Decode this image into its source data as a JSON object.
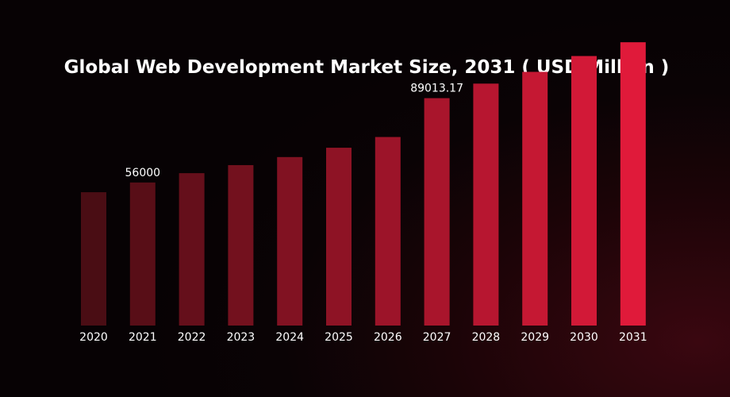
{
  "chart_data": {
    "type": "bar",
    "title": "Global Web Development Market Size, 2031 ( USD Million )",
    "xlabel": "",
    "ylabel": "",
    "categories": [
      "2020",
      "2021",
      "2022",
      "2023",
      "2024",
      "2025",
      "2026",
      "2027",
      "2028",
      "2029",
      "2030",
      "2031"
    ],
    "values": [
      52200,
      56000,
      59650,
      62800,
      65950,
      69600,
      73800,
      89013.17,
      94700,
      99300,
      105500,
      110900
    ],
    "data_labels": [
      null,
      "56000",
      null,
      null,
      null,
      null,
      null,
      "89013.17",
      null,
      null,
      null,
      null
    ],
    "ylim": [
      0,
      115000
    ],
    "grid": false,
    "legend": "none",
    "colors": {
      "bar_start": "#4a0d14",
      "bar_end": "#e01a3a",
      "text": "#ffffff",
      "background": "#080204"
    }
  }
}
